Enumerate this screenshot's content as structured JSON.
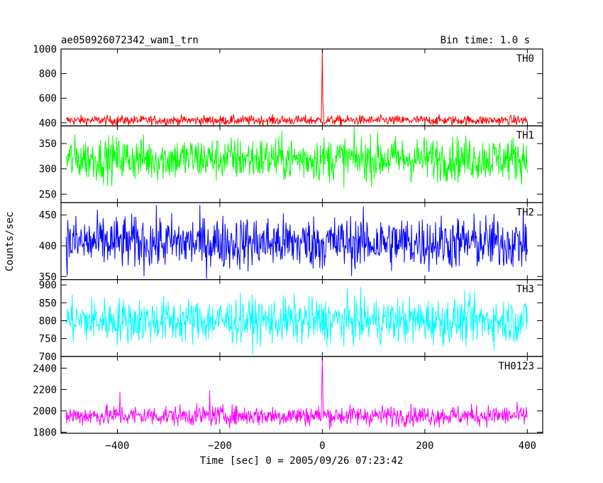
{
  "chart_data": {
    "type": "line",
    "title": "ae050926072342_wam1_trn",
    "subtitle": "Bin time: 1.0 s",
    "xlabel": "Time [sec] 0 = 2005/09/26 07:23:42",
    "ylabel": "Counts/sec",
    "xlim": [
      -510,
      430
    ],
    "x_ticks": [
      -400,
      -200,
      0,
      200,
      400
    ],
    "x_tick_labels": [
      "−400",
      "−200",
      "0",
      "200",
      "400"
    ],
    "x_range_data": [
      -500,
      400
    ],
    "grid": false,
    "panels": [
      {
        "name": "TH0",
        "color": "#ff0000",
        "ylim": [
          375,
          1000
        ],
        "y_ticks": [
          400,
          600,
          800,
          1000
        ],
        "y_tick_labels": [
          "400",
          "600",
          "800",
          "1000"
        ],
        "baseline": 420,
        "noise": 20,
        "peaks": [
          {
            "x": 0,
            "y": 1000
          },
          {
            "x": -1,
            "y": 700
          },
          {
            "x": 1,
            "y": 560
          },
          {
            "x": 2,
            "y": 480
          }
        ]
      },
      {
        "name": "TH1",
        "color": "#00ff00",
        "ylim": [
          233,
          385
        ],
        "y_ticks": [
          250,
          300,
          350
        ],
        "y_tick_labels": [
          "250",
          "300",
          "350"
        ],
        "baseline": 320,
        "noise": 22,
        "peaks": []
      },
      {
        "name": "TH2",
        "color": "#0000ff",
        "ylim": [
          345,
          470
        ],
        "y_ticks": [
          350,
          400,
          450
        ],
        "y_tick_labels": [
          "350",
          "400",
          "450"
        ],
        "baseline": 405,
        "noise": 22,
        "peaks": []
      },
      {
        "name": "TH3",
        "color": "#00ffff",
        "ylim": [
          700,
          915
        ],
        "y_ticks": [
          700,
          750,
          800,
          850,
          900
        ],
        "y_tick_labels": [
          "700",
          "750",
          "800",
          "850",
          "900"
        ],
        "baseline": 800,
        "noise": 32,
        "peaks": []
      },
      {
        "name": "TH0123",
        "color": "#ff00ff",
        "ylim": [
          1790,
          2510
        ],
        "y_ticks": [
          1800,
          2000,
          2200,
          2400
        ],
        "y_tick_labels": [
          "1800",
          "2000",
          "2200",
          "2400"
        ],
        "baseline": 1955,
        "noise": 48,
        "peaks": [
          {
            "x": 0,
            "y": 2510
          },
          {
            "x": -1,
            "y": 2250
          },
          {
            "x": 1,
            "y": 2150
          },
          {
            "x": -220,
            "y": 2190
          },
          {
            "x": -395,
            "y": 2180
          }
        ]
      }
    ]
  }
}
